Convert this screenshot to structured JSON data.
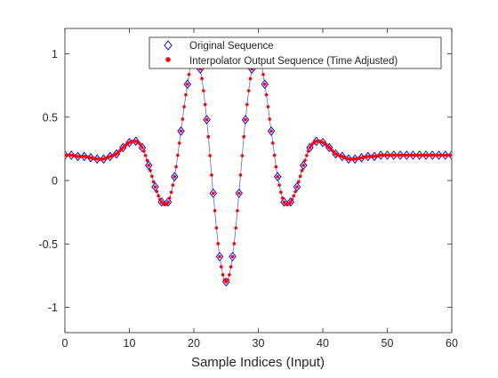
{
  "chart_data": {
    "type": "line",
    "xlabel": "Sample Indices (Input)",
    "ylabel": "",
    "xlim": [
      0,
      60
    ],
    "ylim": [
      -1.2,
      1.2
    ],
    "xticks": [
      0,
      10,
      20,
      30,
      40,
      50,
      60
    ],
    "xtick_labels": [
      "0",
      "10",
      "20",
      "30",
      "40",
      "50",
      "60"
    ],
    "yticks": [
      -1,
      -0.5,
      0,
      0.5,
      1
    ],
    "ytick_labels": [
      "-1",
      "-0.5",
      "0",
      "0.5",
      "1"
    ],
    "grid": false,
    "legend_position": "top-right",
    "series": [
      {
        "name": "Original Sequence",
        "marker": "diamond",
        "color": "#0000ff",
        "x": [
          0,
          1,
          2,
          3,
          4,
          5,
          6,
          7,
          8,
          9,
          10,
          11,
          12,
          13,
          14,
          15,
          16,
          17,
          18,
          19,
          20,
          21,
          22,
          23,
          24,
          25,
          26,
          27,
          28,
          29,
          30,
          31,
          32,
          33,
          34,
          35,
          36,
          37,
          38,
          39,
          40,
          41,
          42,
          43,
          44,
          45,
          46,
          47,
          48,
          49,
          50,
          51,
          52,
          53,
          54,
          55,
          56,
          57,
          58,
          59,
          60
        ],
        "y": [
          0.2,
          0.2,
          0.19,
          0.19,
          0.18,
          0.17,
          0.17,
          0.19,
          0.21,
          0.26,
          0.3,
          0.31,
          0.26,
          0.12,
          -0.05,
          -0.17,
          -0.17,
          0.03,
          0.39,
          0.76,
          1.0,
          0.88,
          0.48,
          -0.1,
          -0.6,
          -0.8,
          -0.6,
          -0.1,
          0.48,
          0.88,
          1.0,
          0.76,
          0.39,
          0.03,
          -0.17,
          -0.17,
          -0.05,
          0.12,
          0.26,
          0.31,
          0.3,
          0.26,
          0.21,
          0.19,
          0.17,
          0.17,
          0.18,
          0.19,
          0.19,
          0.2,
          0.2,
          0.2,
          0.2,
          0.2,
          0.2,
          0.2,
          0.2,
          0.2,
          0.2,
          0.2,
          0.2
        ]
      },
      {
        "name": "Interpolator Output Sequence (Time Adjusted)",
        "marker": "dot",
        "color": "#ff0000",
        "upsample_factor": 4
      }
    ],
    "line_color": "#5a6ad8"
  }
}
